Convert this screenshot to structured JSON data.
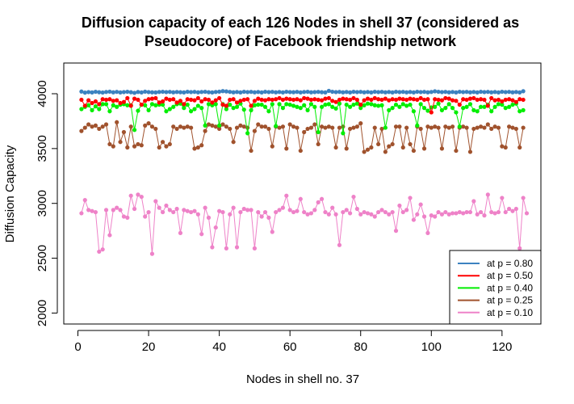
{
  "chart_data": {
    "type": "line",
    "title_line1": "Diffusion capacity of each 126 Nodes in shell 37 (considered as",
    "title_line2": "Pseudocore) of Facebook friendship network",
    "xlabel": "Nodes in shell no. 37",
    "ylabel": "Diffusion Capacity",
    "xlim": [
      1,
      126
    ],
    "ylim": [
      1900,
      4280
    ],
    "x_ticks": [
      0,
      20,
      40,
      60,
      80,
      100,
      120
    ],
    "y_ticks": [
      2000,
      2500,
      3000,
      3500,
      4000
    ],
    "legend_position": "bottom-right",
    "markers": "filled circles",
    "series": [
      {
        "name": "at p = 0.80",
        "color": "#3C82C0",
        "values": [
          4020,
          4010,
          4015,
          4012,
          4018,
          4014,
          4011,
          4016,
          4019,
          4013,
          4017,
          4012,
          4015,
          4018,
          4014,
          4008,
          4016,
          4012,
          4019,
          4015,
          4013,
          4012,
          4016,
          4018,
          4015,
          4017,
          4013,
          4016,
          4014,
          4012,
          4018,
          4015,
          4017,
          4013,
          4016,
          4018,
          4014,
          4012,
          4016,
          4019,
          4024,
          4021,
          4017,
          4013,
          4016,
          4012,
          4018,
          4015,
          4017,
          4013,
          4016,
          4012,
          4018,
          4015,
          4017,
          4013,
          4016,
          4012,
          4018,
          4015,
          4014,
          4017,
          4012,
          4016,
          4018,
          4013,
          4015,
          4017,
          4014,
          4012,
          4026,
          4018,
          4015,
          4017,
          4013,
          4016,
          4012,
          4018,
          4015,
          4017,
          4013,
          4016,
          4012,
          4018,
          4015,
          4017,
          4013,
          4016,
          4012,
          4018,
          4015,
          4017,
          4013,
          4016,
          4012,
          4018,
          4015,
          4017,
          4013,
          4016,
          4022,
          4018,
          4015,
          4017,
          4013,
          4016,
          4012,
          4018,
          4015,
          4017,
          4013,
          4016,
          4012,
          4018,
          4015,
          4017,
          4013,
          4016,
          4012,
          4018,
          4015,
          4017,
          4013,
          4016,
          4012,
          4023
        ]
      },
      {
        "name": "at p = 0.50",
        "color": "#FF0000",
        "values": [
          3945,
          3890,
          3940,
          3915,
          3930,
          3905,
          3950,
          3945,
          3950,
          3935,
          3940,
          3915,
          3925,
          3960,
          3890,
          3955,
          3945,
          3900,
          3935,
          3950,
          3955,
          3960,
          3920,
          3930,
          3955,
          3945,
          3950,
          3920,
          3935,
          3905,
          3950,
          3945,
          3940,
          3960,
          3930,
          3950,
          3945,
          3920,
          3940,
          3960,
          3900,
          3890,
          3945,
          3950,
          3920,
          3935,
          3945,
          3950,
          3890,
          3935,
          3955,
          3945,
          3940,
          3950,
          3945,
          3950,
          3960,
          3945,
          3955,
          3950,
          3945,
          3950,
          3940,
          3960,
          3955,
          3945,
          3950,
          3945,
          3940,
          3955,
          3960,
          3935,
          3925,
          3945,
          3955,
          3950,
          3945,
          3960,
          3945,
          3900,
          3940,
          3955,
          3945,
          3960,
          3950,
          3945,
          3955,
          3940,
          3950,
          3945,
          3955,
          3950,
          3945,
          3955,
          3950,
          3945,
          3960,
          3945,
          3950,
          3830,
          3950,
          3945,
          3940,
          3960,
          3955,
          3940,
          3935,
          3900,
          3950,
          3945,
          3955,
          3960,
          3945,
          3950,
          3945,
          3890,
          3960,
          3940,
          3945,
          3930,
          3945,
          3950,
          3940,
          3925,
          3950,
          3945
        ]
      },
      {
        "name": "at p = 0.40",
        "color": "#00EE00",
        "values": [
          3860,
          3880,
          3895,
          3850,
          3885,
          3860,
          3905,
          3905,
          3840,
          3895,
          3880,
          3900,
          3905,
          3895,
          3895,
          3670,
          3845,
          3900,
          3895,
          3850,
          3905,
          3895,
          3900,
          3900,
          3840,
          3860,
          3880,
          3905,
          3910,
          3870,
          3900,
          3840,
          3860,
          3890,
          3870,
          3710,
          3905,
          3895,
          3905,
          3710,
          3905,
          3860,
          3900,
          3870,
          3880,
          3910,
          3855,
          3640,
          3850,
          3895,
          3900,
          3900,
          3880,
          3840,
          3905,
          3705,
          3905,
          3870,
          3905,
          3900,
          3890,
          3880,
          3870,
          3895,
          3850,
          3905,
          3880,
          3650,
          3880,
          3900,
          3905,
          3880,
          3865,
          3910,
          3640,
          3900,
          3880,
          3900,
          3910,
          3870,
          3895,
          3910,
          3905,
          3895,
          3890,
          3895,
          3690,
          3850,
          3870,
          3900,
          3880,
          3905,
          3890,
          3900,
          3840,
          3710,
          3905,
          3870,
          3845,
          3875,
          3880,
          3910,
          3850,
          3870,
          3905,
          3870,
          3830,
          3700,
          3870,
          3880,
          3905,
          3850,
          3840,
          3880,
          3880,
          3900,
          3840,
          3880,
          3905,
          3900,
          3870,
          3880,
          3900,
          3910,
          3840,
          3850
        ]
      },
      {
        "name": "at p = 0.25",
        "color": "#A0522D",
        "values": [
          3660,
          3690,
          3720,
          3700,
          3710,
          3680,
          3700,
          3720,
          3540,
          3520,
          3740,
          3560,
          3650,
          3510,
          3700,
          3520,
          3540,
          3530,
          3710,
          3730,
          3700,
          3680,
          3510,
          3560,
          3520,
          3540,
          3700,
          3680,
          3700,
          3690,
          3700,
          3690,
          3500,
          3510,
          3530,
          3660,
          3720,
          3710,
          3700,
          3680,
          3720,
          3700,
          3680,
          3560,
          3690,
          3710,
          3700,
          3690,
          3480,
          3660,
          3720,
          3700,
          3700,
          3680,
          3520,
          3700,
          3690,
          3700,
          3500,
          3720,
          3700,
          3690,
          3480,
          3650,
          3680,
          3690,
          3720,
          3540,
          3700,
          3690,
          3700,
          3690,
          3510,
          3690,
          3700,
          3500,
          3680,
          3690,
          3700,
          3730,
          3470,
          3490,
          3510,
          3690,
          3540,
          3680,
          3470,
          3520,
          3540,
          3700,
          3700,
          3510,
          3690,
          3540,
          3480,
          3700,
          3680,
          3500,
          3700,
          3690,
          3700,
          3690,
          3500,
          3700,
          3690,
          3700,
          3480,
          3690,
          3700,
          3690,
          3470,
          3680,
          3690,
          3700,
          3690,
          3720,
          3680,
          3700,
          3690,
          3520,
          3510,
          3700,
          3690,
          3680,
          3510,
          3690
        ]
      },
      {
        "name": "at p = 0.10",
        "color": "#EE82C8",
        "values": [
          2910,
          3030,
          2940,
          2930,
          2920,
          2560,
          2580,
          2940,
          2710,
          2940,
          2960,
          2940,
          2880,
          2870,
          3070,
          2950,
          3080,
          3060,
          2880,
          2920,
          2540,
          3020,
          2960,
          2920,
          2980,
          2940,
          2920,
          2950,
          2730,
          2940,
          2930,
          2920,
          2930,
          2900,
          2720,
          2960,
          2870,
          2600,
          2780,
          2930,
          2920,
          2590,
          2900,
          2960,
          2600,
          2920,
          2950,
          2940,
          2940,
          2590,
          2920,
          2880,
          2920,
          2870,
          2740,
          2920,
          2940,
          2960,
          3070,
          2940,
          2920,
          2930,
          3040,
          2920,
          2900,
          2910,
          2940,
          3010,
          3040,
          2920,
          2900,
          2960,
          2900,
          2620,
          2920,
          2940,
          2910,
          3060,
          2950,
          2900,
          2920,
          2910,
          2900,
          2880,
          2920,
          2940,
          2920,
          2900,
          2920,
          2750,
          2980,
          2920,
          2940,
          3050,
          2850,
          2900,
          2990,
          2880,
          2730,
          2890,
          2880,
          2920,
          2900,
          2920,
          2900,
          2910,
          2910,
          2920,
          2910,
          2920,
          2920,
          3020,
          2900,
          2920,
          2890,
          3080,
          2920,
          2910,
          2920,
          3050,
          2920,
          2950,
          2930,
          2950,
          2590,
          3050,
          2910
        ]
      }
    ]
  }
}
